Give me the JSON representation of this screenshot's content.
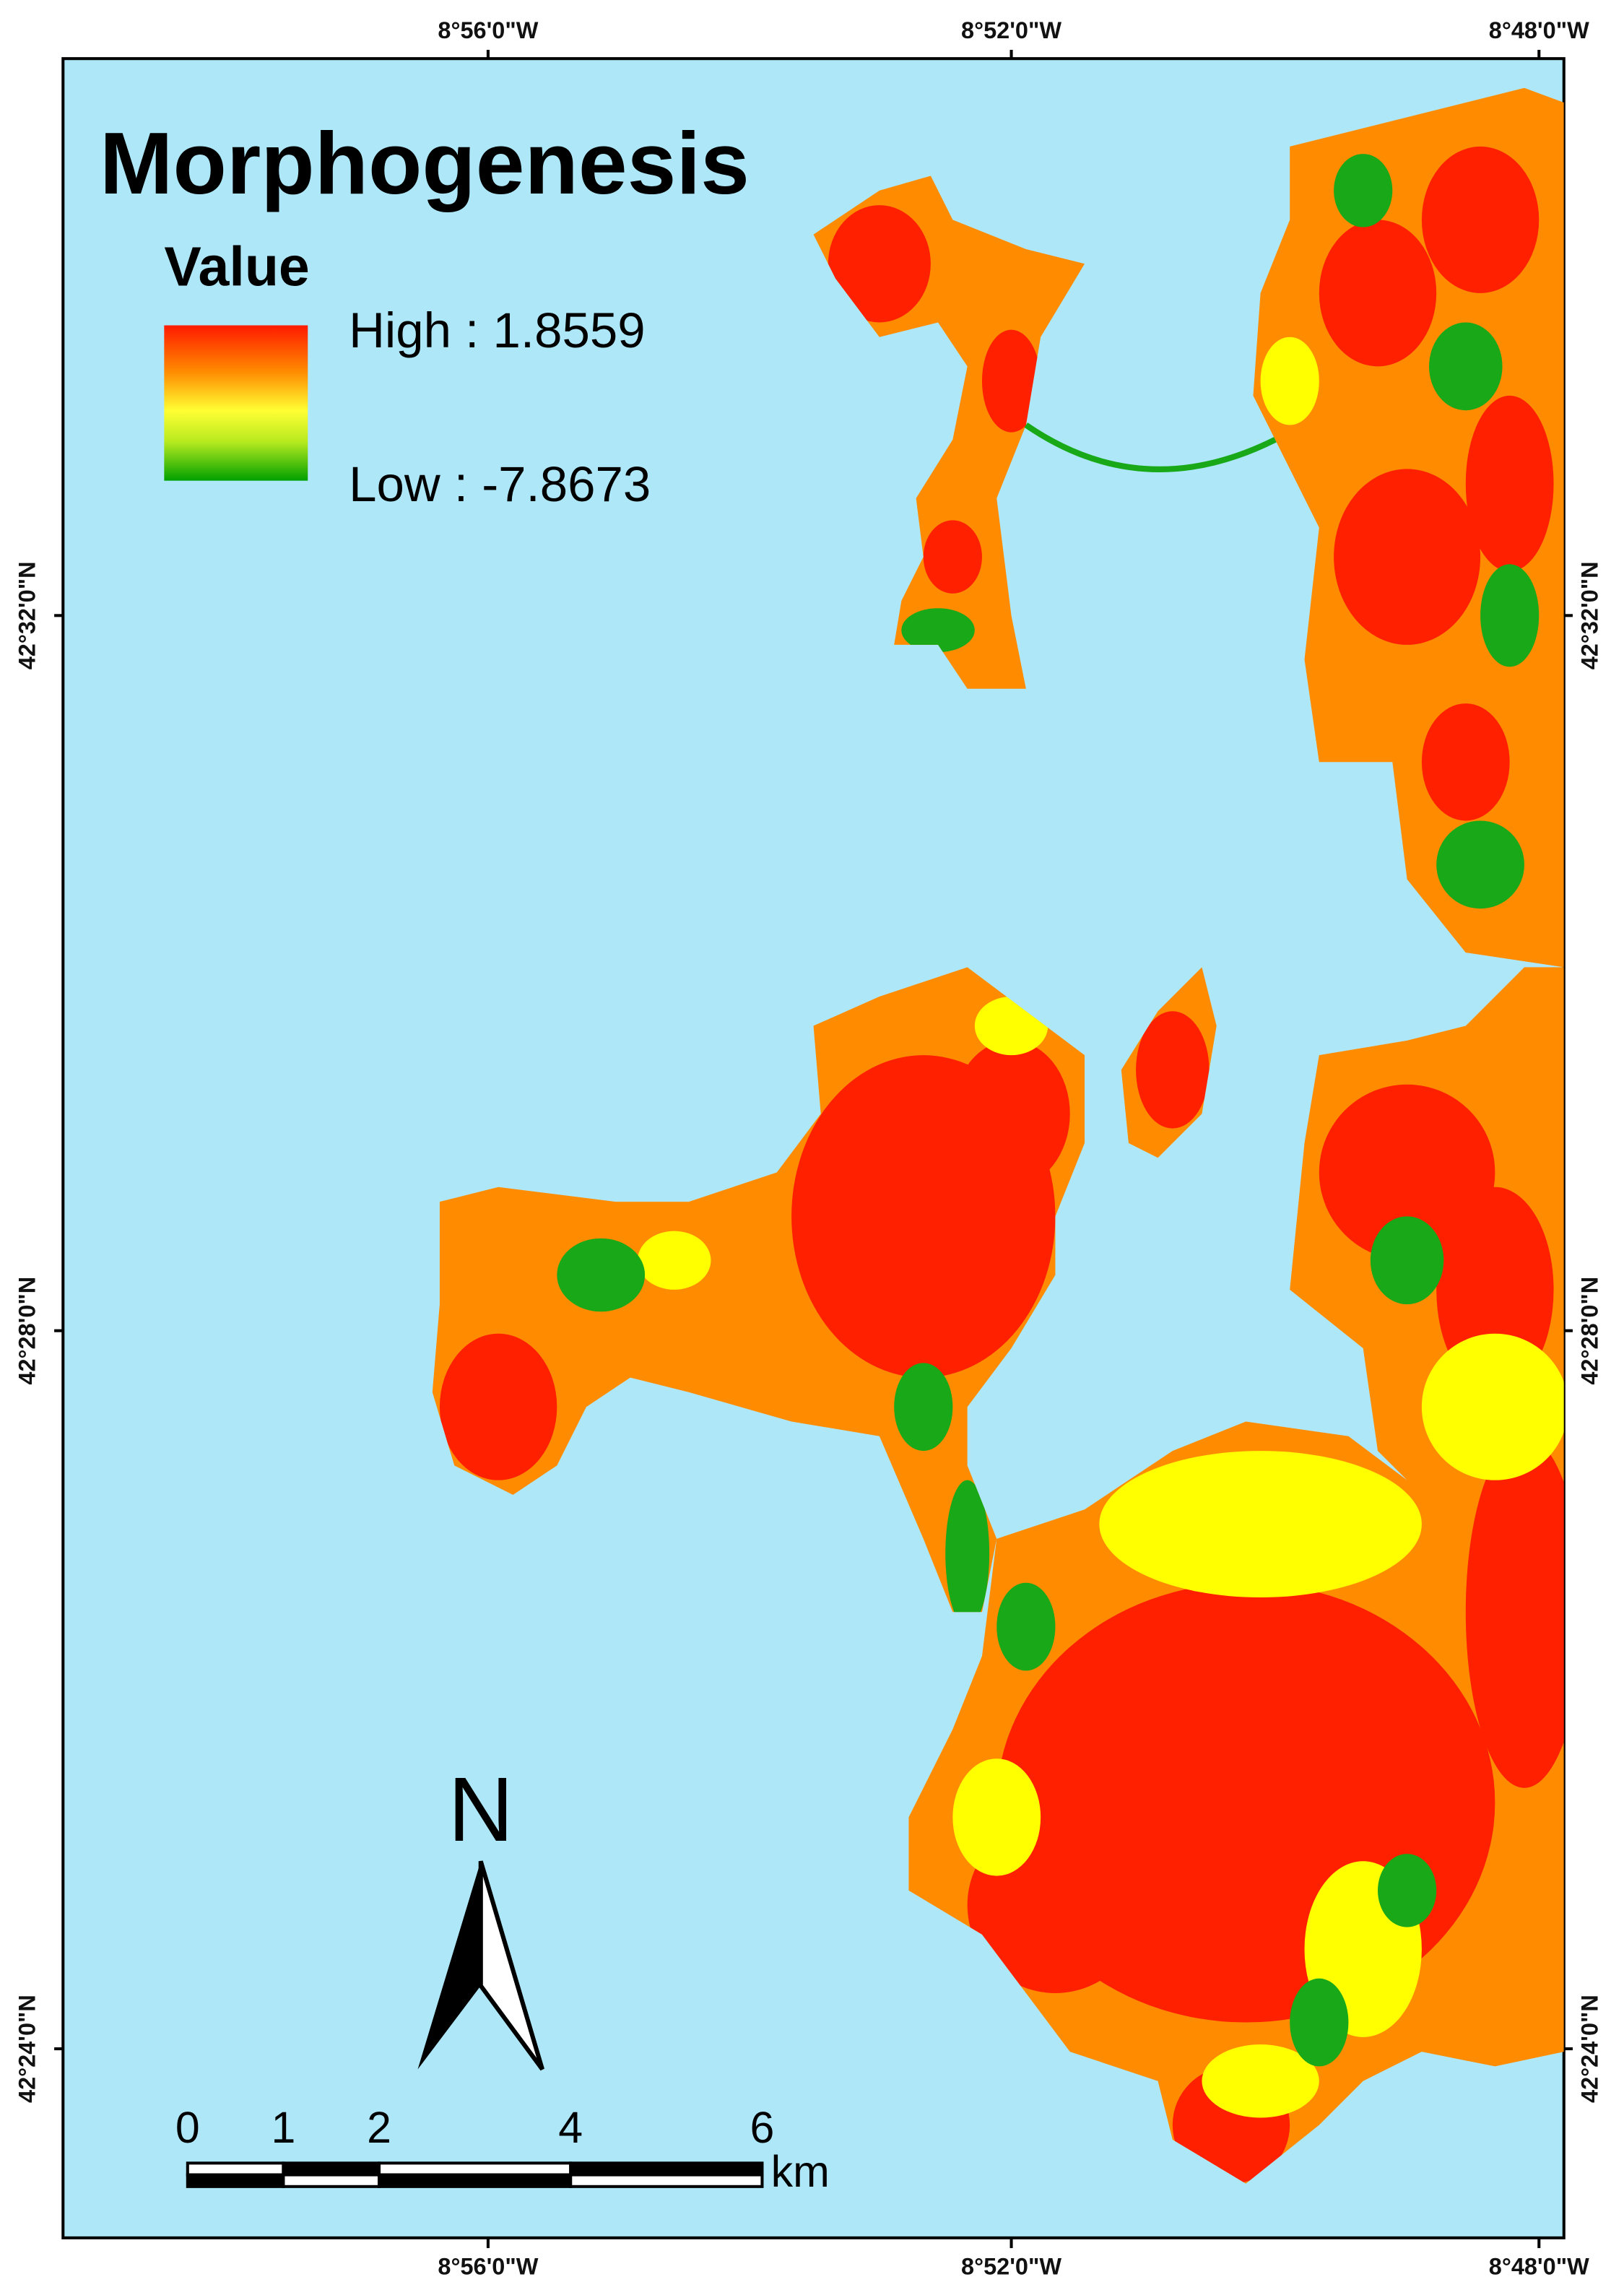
{
  "title": "Morphogenesis",
  "legend": {
    "title": "Value",
    "high": "High : 1.8559",
    "low": "Low : -7.8673"
  },
  "longitude_labels": [
    "8°56'0\"W",
    "8°52'0\"W",
    "8°48'0\"W"
  ],
  "latitude_labels": [
    "42°32'0\"N",
    "42°28'0\"N",
    "42°24'0\"N"
  ],
  "north_arrow": "N",
  "scale_bar": {
    "ticks": [
      0,
      1,
      2,
      4,
      6
    ],
    "unit": "km"
  }
}
